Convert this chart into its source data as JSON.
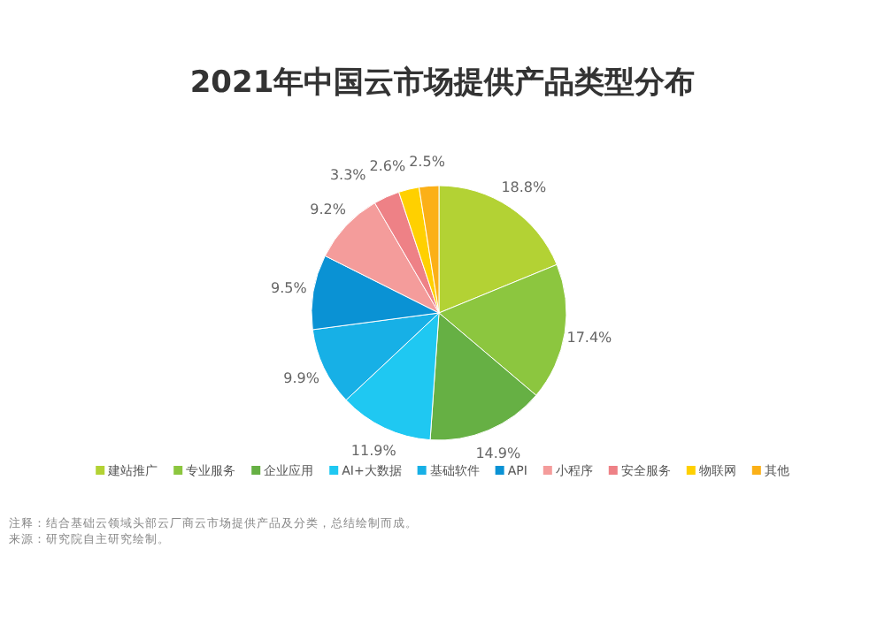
{
  "chart_data": {
    "type": "pie",
    "title": "2021年中国云市场提供产品类型分布",
    "categories": [
      "建站推广",
      "专业服务",
      "企业应用",
      "AI+大数据",
      "基础软件",
      "API",
      "小程序",
      "安全服务",
      "物联网",
      "其他"
    ],
    "values": [
      18.8,
      17.4,
      14.9,
      11.9,
      9.9,
      9.5,
      9.2,
      3.3,
      2.6,
      2.5
    ],
    "colors": [
      "#b3d234",
      "#8cc63f",
      "#66b044",
      "#1fc8f2",
      "#17b0e6",
      "#0a92d4",
      "#f49c9b",
      "#ee8186",
      "#ffd000",
      "#fbb017"
    ],
    "value_labels": [
      "18.8%",
      "17.4%",
      "14.9%",
      "11.9%",
      "9.9%",
      "9.5%",
      "9.2%",
      "3.3%",
      "2.6%",
      "2.5%"
    ],
    "legend": "bottom",
    "annotations": [
      "注释：结合基础云领域头部云厂商云市场提供产品及分类，总结绘制而成。",
      "来源：研究院自主研究绘制。"
    ]
  }
}
